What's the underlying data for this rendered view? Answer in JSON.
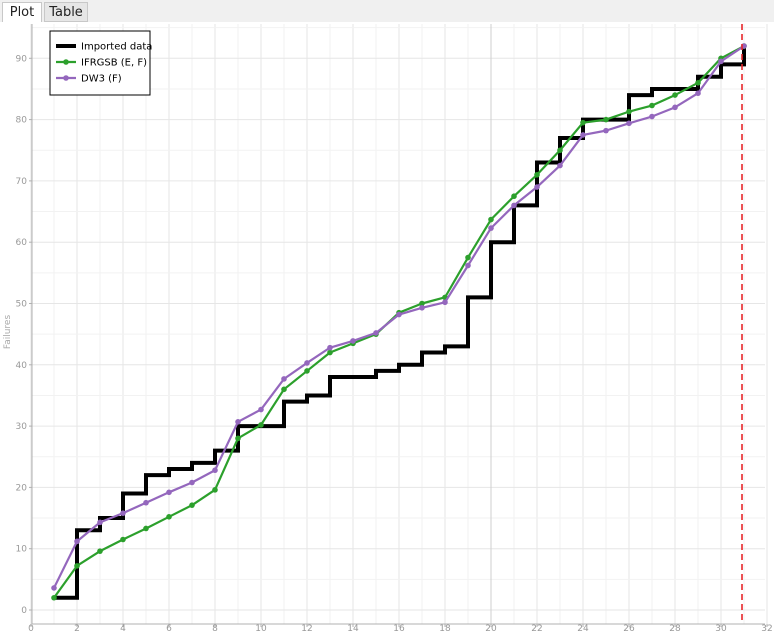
{
  "tabs": [
    {
      "label": "Plot",
      "active": true
    },
    {
      "label": "Table",
      "active": false
    }
  ],
  "chart_data": {
    "type": "line",
    "title": "",
    "xlabel": "",
    "ylabel": "Failures",
    "xlim": [
      0,
      32
    ],
    "ylim": [
      -2,
      96
    ],
    "x_ticks": [
      0,
      2,
      4,
      6,
      8,
      10,
      12,
      14,
      16,
      18,
      20,
      22,
      24,
      26,
      28,
      30,
      32
    ],
    "y_ticks": [
      0,
      10,
      20,
      30,
      40,
      50,
      60,
      70,
      80,
      90
    ],
    "grid": true,
    "legend_position": "top-left",
    "vertical_marker": {
      "x": 31,
      "color": "#e8262a",
      "style": "dashed"
    },
    "series": [
      {
        "name": "Imported data",
        "kind": "step",
        "color": "#000000",
        "x": [
          1,
          2,
          3,
          4,
          5,
          6,
          7,
          8,
          9,
          10,
          11,
          12,
          13,
          14,
          15,
          16,
          17,
          18,
          19,
          20,
          21,
          22,
          23,
          24,
          25,
          26,
          27,
          28,
          29,
          30,
          31
        ],
        "y": [
          2,
          13,
          15,
          19,
          22,
          23,
          24,
          26,
          30,
          30,
          34,
          35,
          38,
          38,
          39,
          40,
          42,
          43,
          51,
          60,
          66,
          73,
          77,
          80,
          80,
          84,
          85,
          85,
          87,
          89,
          92
        ]
      },
      {
        "name": "IFRGSB (E, F)",
        "kind": "line",
        "color": "#2ca02c",
        "x": [
          1,
          2,
          3,
          4,
          5,
          6,
          7,
          8,
          9,
          10,
          11,
          12,
          13,
          14,
          15,
          16,
          17,
          18,
          19,
          20,
          21,
          22,
          23,
          24,
          25,
          26,
          27,
          28,
          29,
          30,
          31
        ],
        "y": [
          2,
          7.2,
          9.6,
          11.5,
          13.3,
          15.2,
          17.1,
          19.6,
          28,
          30.2,
          36,
          39,
          42,
          43.5,
          45,
          48.5,
          50,
          51,
          57.5,
          63.7,
          67.5,
          71,
          75,
          79.5,
          80,
          81.3,
          82.3,
          84,
          86,
          90,
          92
        ]
      },
      {
        "name": "DW3 (F)",
        "kind": "line",
        "color": "#9467bd",
        "x": [
          1,
          2,
          3,
          4,
          5,
          6,
          7,
          8,
          9,
          10,
          11,
          12,
          13,
          14,
          15,
          16,
          17,
          18,
          19,
          20,
          21,
          22,
          23,
          24,
          25,
          26,
          27,
          28,
          29,
          30,
          31
        ],
        "y": [
          3.6,
          11.2,
          14.3,
          15.8,
          17.5,
          19.2,
          20.8,
          22.8,
          30.7,
          32.7,
          37.7,
          40.3,
          42.8,
          43.9,
          45.2,
          48.2,
          49.3,
          50.2,
          56.2,
          62.3,
          66,
          69,
          72.5,
          77.5,
          78.2,
          79.4,
          80.5,
          82,
          84.3,
          89.5,
          92
        ]
      }
    ]
  }
}
